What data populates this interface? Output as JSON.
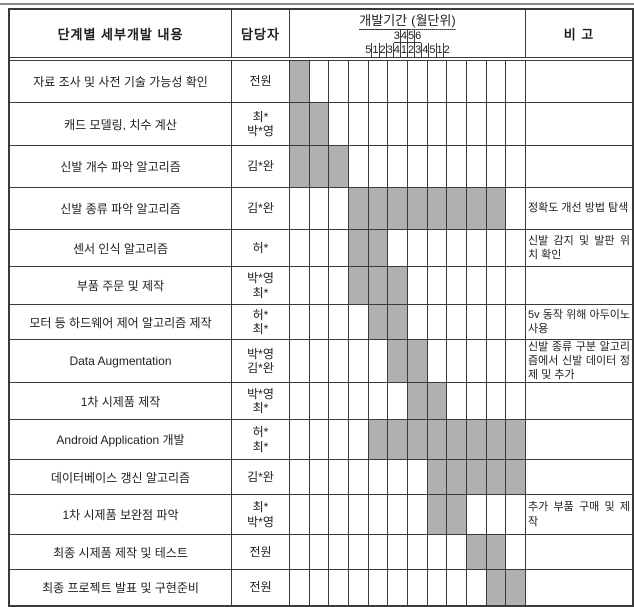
{
  "header": {
    "task_col": "단계별 세부개발 내용",
    "manager_col": "담당자",
    "period_title_part1": "개발기간",
    "period_title_part2": "(월단위)",
    "remark_col": "비 고",
    "months": [
      {
        "label": "3",
        "weeks": [
          "5"
        ]
      },
      {
        "label": "4",
        "weeks": [
          "1",
          "2",
          "3",
          "4"
        ]
      },
      {
        "label": "5",
        "weeks": [
          "1",
          "2",
          "3",
          "4",
          "5"
        ]
      },
      {
        "label": "6",
        "weeks": [
          "1",
          "2"
        ]
      }
    ]
  },
  "colors": {
    "bar_fill": "#b0b0b0",
    "border": "#3a3a3a"
  },
  "rows": [
    {
      "task": "자료 조사 및 사전 기술 가능성 확인",
      "manager": "전원",
      "start": 1,
      "end": 1,
      "remark": ""
    },
    {
      "task": "캐드 모델링, 치수 계산",
      "manager": "최*\n박*영",
      "start": 1,
      "end": 2,
      "remark": ""
    },
    {
      "task": "신발 개수 파악 알고리즘",
      "manager": "김*완",
      "start": 1,
      "end": 3,
      "remark": ""
    },
    {
      "task": "신발 종류 파악 알고리즘",
      "manager": "김*완",
      "start": 4,
      "end": 11,
      "remark": "정확도 개선 방법 탐색"
    },
    {
      "task": "센서 인식 알고리즘",
      "manager": "허*",
      "start": 4,
      "end": 5,
      "remark": "신발 감지 및 발판 위치 확인"
    },
    {
      "task": "부품 주문 및 제작",
      "manager": "박*영\n최*",
      "start": 4,
      "end": 6,
      "remark": ""
    },
    {
      "task": "모터 등 하드웨어 제어 알고리즘 제작",
      "manager": "허*\n최*",
      "start": 5,
      "end": 6,
      "remark": "5v 동작 위해 아두이노 사용"
    },
    {
      "task": "Data Augmentation",
      "manager": "박*영\n김*완",
      "start": 6,
      "end": 7,
      "remark": "신발 종류 구분 알고리즘에서 신발 데이터 정제 및 추가"
    },
    {
      "task": "1차 시제품 제작",
      "manager": "박*영\n최*",
      "start": 7,
      "end": 8,
      "remark": ""
    },
    {
      "task": "Android Application 개발",
      "manager": "허*\n최*",
      "start": 5,
      "end": 12,
      "remark": ""
    },
    {
      "task": "데이터베이스 갱신 알고리즘",
      "manager": "김*완",
      "start": 8,
      "end": 12,
      "remark": ""
    },
    {
      "task": "1차 시제품 보완점 파악",
      "manager": "최*\n박*영",
      "start": 8,
      "end": 9,
      "remark": "추가 부품 구매 및 제작"
    },
    {
      "task": "최종 시제품 제작 및 테스트",
      "manager": "전원",
      "start": 10,
      "end": 11,
      "remark": ""
    },
    {
      "task": "최종 프로젝트 발표 및 구현준비",
      "manager": "전원",
      "start": 11,
      "end": 12,
      "remark": ""
    }
  ],
  "chart_data": {
    "type": "table",
    "title": "개발기간 (월단위)",
    "columns": [
      "단계별 세부개발 내용",
      "담당자",
      "3월 5주",
      "4월 1주",
      "4월 2주",
      "4월 3주",
      "4월 4주",
      "5월 1주",
      "5월 2주",
      "5월 3주",
      "5월 4주",
      "5월 5주",
      "6월 1주",
      "6월 2주",
      "비 고"
    ],
    "week_columns_total": 12,
    "bars_as_week_ranges": [
      [
        1,
        1
      ],
      [
        1,
        2
      ],
      [
        1,
        3
      ],
      [
        4,
        11
      ],
      [
        4,
        5
      ],
      [
        4,
        6
      ],
      [
        5,
        6
      ],
      [
        6,
        7
      ],
      [
        7,
        8
      ],
      [
        5,
        12
      ],
      [
        8,
        12
      ],
      [
        8,
        9
      ],
      [
        10,
        11
      ],
      [
        11,
        12
      ]
    ]
  }
}
